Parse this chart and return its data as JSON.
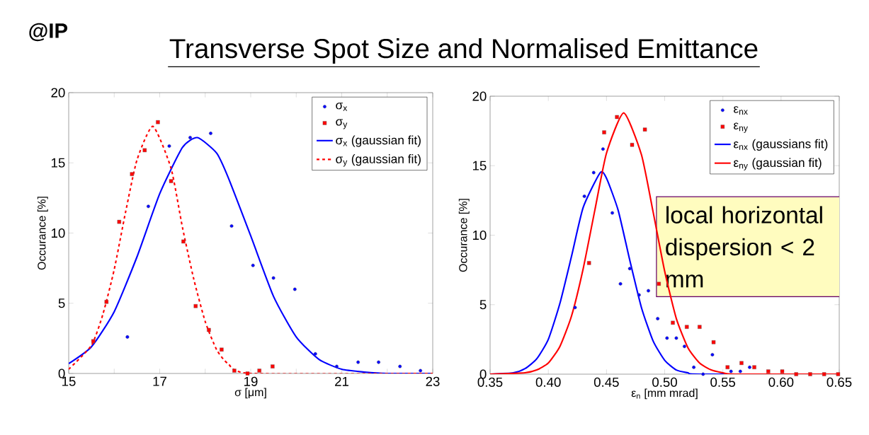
{
  "chart_data": [
    {
      "type": "scatter",
      "title": "Transverse Spot Size and Normalised Emittance",
      "annotations": [
        "@IP"
      ],
      "xlabel": "σ [μm]",
      "ylabel": "Occurance [%]",
      "xlim": [
        15,
        23
      ],
      "ylim": [
        0,
        20
      ],
      "xticks": [
        15,
        {
          "value": 16,
          "label": null
        },
        17,
        {
          "value": 18,
          "label": null
        },
        19,
        {
          "value": 20,
          "label": null
        },
        21,
        {
          "value": 22,
          "label": null
        },
        23
      ],
      "yticks": [
        0,
        5,
        10,
        15,
        20
      ],
      "grid": false,
      "legend": "top right",
      "series": [
        {
          "name": "σ$_{x}$",
          "type": "scatter",
          "marker": "circle",
          "color": "#0000ff",
          "x": [
            16.29,
            16.75,
            17.21,
            17.67,
            18.12,
            18.58,
            19.05,
            19.5,
            19.97,
            20.42,
            20.89,
            21.36,
            21.81,
            22.28,
            22.73
          ],
          "values": [
            2.6,
            11.9,
            16.2,
            16.8,
            17.1,
            10.5,
            7.7,
            6.8,
            6.0,
            1.4,
            0.5,
            0.8,
            0.8,
            0.5,
            0.2
          ]
        },
        {
          "name": "σ$_{y}$",
          "type": "scatter",
          "marker": "square",
          "color": "#ff0000",
          "x": [
            15.54,
            15.83,
            16.11,
            16.39,
            16.67,
            16.96,
            17.25,
            17.52,
            17.79,
            18.08,
            18.36,
            18.64,
            18.93,
            19.19,
            19.48
          ],
          "values": [
            2.3,
            5.1,
            10.8,
            14.2,
            15.9,
            17.9,
            13.7,
            9.4,
            4.8,
            3.1,
            1.7,
            0.2,
            0.0,
            0.2,
            0.5
          ]
        },
        {
          "name": "σ$_{x}$ (gaussian fit)",
          "type": "line",
          "marker": "none",
          "line_style": "solid",
          "color": "#0000ff",
          "x": [
            15,
            15.5,
            16,
            16.5,
            17,
            17.5,
            17.83,
            18.25,
            18.5,
            19,
            19.5,
            20,
            20.5,
            21,
            21.5,
            22,
            23
          ],
          "values": [
            0.7,
            1.9,
            4.4,
            8.3,
            12.8,
            16.1,
            16.8,
            15.7,
            14.0,
            9.8,
            5.5,
            2.6,
            1.0,
            0.3,
            0.1,
            0.0,
            0.0
          ]
        },
        {
          "name": "σ$_{y}$ (gaussian fit)",
          "type": "line",
          "marker": "none",
          "line_style": "dashed",
          "color": "#ff0000",
          "x": [
            15,
            15.5,
            15.75,
            16,
            16.25,
            16.5,
            16.85,
            17.25,
            17.5,
            17.75,
            18,
            18.25,
            18.5,
            19,
            23
          ],
          "values": [
            0.3,
            2.0,
            4.2,
            7.4,
            11.5,
            15.2,
            17.6,
            14.6,
            10.4,
            6.7,
            3.7,
            1.7,
            0.7,
            0.0,
            0.0
          ]
        }
      ]
    },
    {
      "type": "scatter",
      "annotations": [
        "local horizontal dispersion < 2 mm"
      ],
      "xlabel": "ε$_{n}$ [mm mrad]",
      "ylabel": "Occurance [%]",
      "xlim": [
        0.35,
        0.65
      ],
      "ylim": [
        0,
        20
      ],
      "xticks": [
        0.35,
        {
          "value": 0.4,
          "label": "0.40"
        },
        0.45,
        {
          "value": 0.5,
          "label": "0.50"
        },
        0.55,
        {
          "value": 0.6,
          "label": "0.60"
        },
        0.65
      ],
      "yticks": [
        0,
        5,
        10,
        15,
        20
      ],
      "grid": false,
      "legend": "top right",
      "series": [
        {
          "name": "ε$_{nx}$",
          "type": "scatter",
          "marker": "circle",
          "color": "#0000ff",
          "x": [
            0.423,
            0.431,
            0.439,
            0.447,
            0.455,
            0.462,
            0.47,
            0.478,
            0.486,
            0.494,
            0.502,
            0.51,
            0.517,
            0.525,
            0.533,
            0.541,
            0.557,
            0.565,
            0.573
          ],
          "values": [
            4.8,
            12.8,
            14.5,
            16.2,
            11.6,
            6.5,
            7.6,
            5.7,
            6.0,
            4.0,
            2.6,
            2.6,
            2.0,
            0.5,
            0.0,
            1.4,
            0.2,
            0.2,
            0.5
          ]
        },
        {
          "name": "ε$_{ny}$",
          "type": "scatter",
          "marker": "square",
          "color": "#ff0000",
          "x": [
            0.435,
            0.448,
            0.459,
            0.472,
            0.483,
            0.495,
            0.507,
            0.519,
            0.53,
            0.542,
            0.554,
            0.566,
            0.577,
            0.589,
            0.601,
            0.613,
            0.625,
            0.637,
            0.649
          ],
          "values": [
            8.0,
            17.4,
            18.5,
            16.5,
            17.6,
            6.5,
            3.7,
            3.4,
            3.4,
            2.3,
            0.5,
            0.8,
            0.5,
            0.2,
            0.2,
            0.0,
            0.0,
            0.0,
            0.0
          ]
        },
        {
          "name": "ε$_{nx}$ (gaussians fit)",
          "type": "line",
          "marker": "none",
          "line_style": "solid",
          "color": "#0000ff",
          "x": [
            0.35,
            0.37,
            0.38,
            0.39,
            0.4,
            0.41,
            0.42,
            0.43,
            0.4446,
            0.45,
            0.46,
            0.47,
            0.48,
            0.49,
            0.5,
            0.51,
            0.52,
            0.53,
            0.65
          ],
          "values": [
            0,
            0.1,
            0.4,
            1.1,
            2.5,
            5.1,
            8.5,
            12.0,
            14.5,
            14.1,
            11.8,
            8.2,
            4.8,
            2.4,
            1.0,
            0.3,
            0.1,
            0.0,
            0.0
          ]
        },
        {
          "name": "ε$_{ny}$ (gaussian fit)",
          "type": "line",
          "marker": "none",
          "line_style": "solid",
          "color": "#ff0000",
          "x": [
            0.35,
            0.38,
            0.39,
            0.4,
            0.41,
            0.42,
            0.43,
            0.44,
            0.45,
            0.4648,
            0.48,
            0.49,
            0.5,
            0.51,
            0.52,
            0.53,
            0.54,
            0.55,
            0.56,
            0.65
          ],
          "values": [
            0,
            0.1,
            0.3,
            0.8,
            2.0,
            4.2,
            7.6,
            11.8,
            15.9,
            18.8,
            15.8,
            11.7,
            7.4,
            4.0,
            1.9,
            0.8,
            0.3,
            0.1,
            0.0,
            0.0
          ]
        }
      ]
    }
  ]
}
